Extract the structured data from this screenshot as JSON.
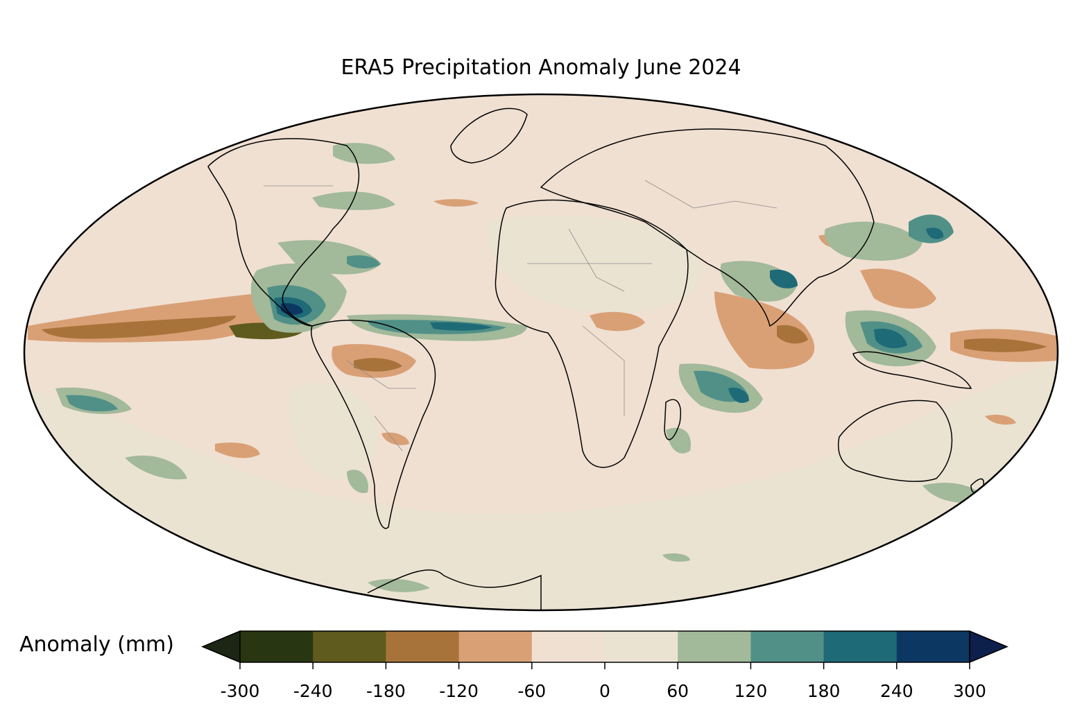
{
  "title": "ERA5 Precipitation Anomaly June 2024",
  "colorbar": {
    "label": "Anomaly (mm)",
    "ticks": [
      "-300",
      "-240",
      "-180",
      "-120",
      "-60",
      "0",
      "60",
      "120",
      "180",
      "240",
      "300"
    ],
    "colors": [
      "#283612",
      "#5f5a1e",
      "#a8733a",
      "#d9a076",
      "#f0e0d2",
      "#ebe3d2",
      "#a2b99a",
      "#519087",
      "#1e6a77",
      "#0d3763"
    ],
    "under_color": "#1c2614",
    "over_color": "#0d1f4c"
  },
  "map": {
    "projection": "Mollweide",
    "background_color": "#f0e0d2",
    "anomaly_features": [
      {
        "region": "Central America / Caribbean",
        "sign": "wet"
      },
      {
        "region": "Eastern Pacific ITCZ",
        "sign": "dry"
      },
      {
        "region": "Tropical Atlantic ITCZ",
        "sign": "wet"
      },
      {
        "region": "Amazon basin",
        "sign": "dry"
      },
      {
        "region": "Central Africa",
        "sign": "dry"
      },
      {
        "region": "Arabian Sea / Indian Ocean",
        "sign": "dry"
      },
      {
        "region": "Bay of Bengal",
        "sign": "wet"
      },
      {
        "region": "Maritime Continent",
        "sign": "wet"
      },
      {
        "region": "Western Pacific",
        "sign": "dry"
      },
      {
        "region": "Southern Indian Ocean",
        "sign": "wet"
      }
    ]
  }
}
